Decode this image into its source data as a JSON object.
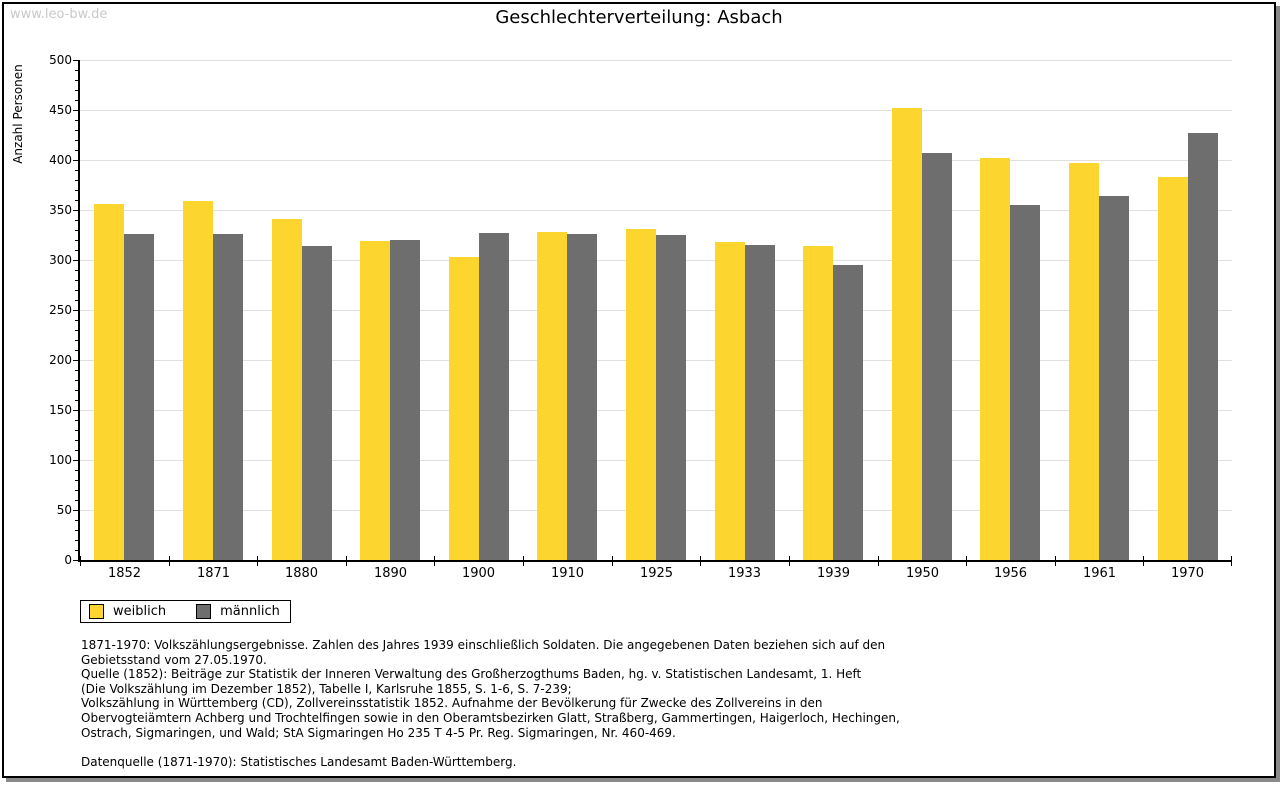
{
  "watermark": "www.leo-bw.de",
  "title": "Geschlechterverteilung: Asbach",
  "chart_data": {
    "type": "bar",
    "title": "Geschlechterverteilung: Asbach",
    "xlabel": "",
    "ylabel": "Anzahl Personen",
    "ylim": [
      0,
      500
    ],
    "ytick_step": 50,
    "minor_tick_step": 10,
    "grid": true,
    "gridline_color": "#e0e0e0",
    "legend_position": "bottom-left",
    "categories": [
      "1852",
      "1871",
      "1880",
      "1890",
      "1900",
      "1910",
      "1925",
      "1933",
      "1939",
      "1950",
      "1956",
      "1961",
      "1970"
    ],
    "series": [
      {
        "name": "weiblich",
        "color": "#fcd52f",
        "values": [
          356,
          359,
          341,
          319,
          303,
          328,
          331,
          318,
          314,
          452,
          402,
          397,
          383
        ]
      },
      {
        "name": "männlich",
        "color": "#6e6e6e",
        "values": [
          326,
          326,
          314,
          320,
          327,
          326,
          325,
          315,
          295,
          407,
          355,
          364,
          427
        ]
      }
    ]
  },
  "footer": {
    "lines": [
      "1871-1970: Volkszählungsergebnisse. Zahlen des Jahres 1939 einschließlich Soldaten. Die angegebenen Daten beziehen sich auf den",
      "Gebietsstand vom 27.05.1970.",
      "Quelle (1852): Beiträge zur Statistik der Inneren Verwaltung des Großherzogthums Baden, hg. v. Statistischen Landesamt, 1. Heft",
      "(Die Volkszählung im Dezember 1852), Tabelle I, Karlsruhe 1855, S. 1-6, S. 7-239;",
      "Volkszählung in Württemberg (CD), Zollvereinsstatistik 1852. Aufnahme der Bevölkerung für Zwecke des Zollvereins in den",
      "Obervogteiämtern Achberg und Trochtelfingen sowie in den Oberamtsbezirken Glatt, Straßberg, Gammertingen, Haigerloch, Hechingen,",
      "Ostrach, Sigmaringen, und Wald; StA Sigmaringen Ho 235 T 4-5 Pr. Reg. Sigmaringen, Nr. 460-469.",
      "",
      "Datenquelle (1871-1970): Statistisches Landesamt Baden-Württemberg."
    ]
  }
}
